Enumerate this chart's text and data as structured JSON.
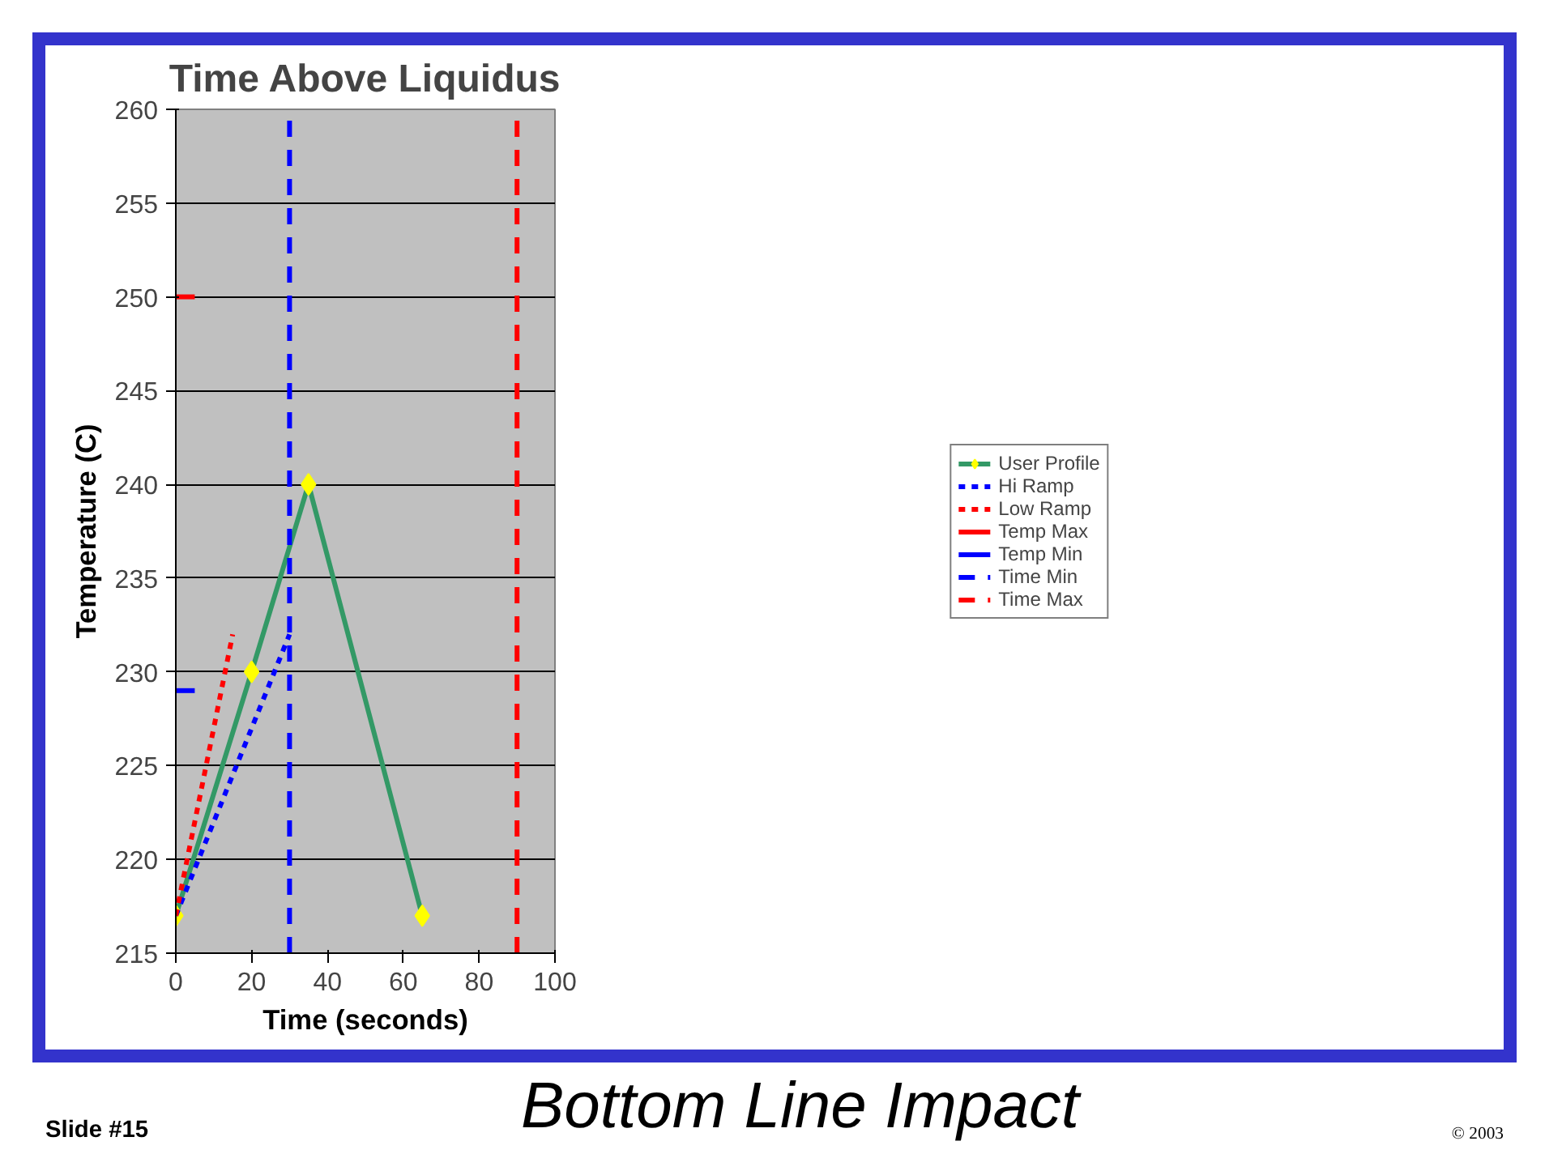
{
  "chart_data": {
    "type": "line",
    "title": "Time Above Liquidus",
    "xlabel": "Time (seconds)",
    "ylabel": "Temperature (C)",
    "xlim": [
      0,
      100
    ],
    "ylim": [
      215,
      260
    ],
    "xticks": [
      0,
      20,
      40,
      60,
      80,
      100
    ],
    "yticks": [
      215,
      220,
      225,
      230,
      235,
      240,
      245,
      250,
      255,
      260
    ],
    "grid": "y",
    "legend": "right",
    "series": [
      {
        "name": "User Profile",
        "color": "#339966",
        "x": [
          0,
          20,
          35,
          65
        ],
        "values": [
          217,
          230,
          240,
          217
        ],
        "marker": "diamond",
        "line_style": "solid"
      },
      {
        "name": "Hi Ramp",
        "color": "#0000ff",
        "x": [
          0,
          30
        ],
        "values": [
          217,
          232
        ],
        "line_style": "dotted"
      },
      {
        "name": "Low Ramp",
        "color": "#ff0000",
        "x": [
          0,
          15
        ],
        "values": [
          217,
          232
        ],
        "line_style": "dotted"
      },
      {
        "name": "Temp Max",
        "color": "#ff0000",
        "x": [
          0,
          5
        ],
        "values": [
          250,
          250
        ],
        "line_style": "solid"
      },
      {
        "name": "Temp Min",
        "color": "#0000ff",
        "x": [
          0,
          5
        ],
        "values": [
          229,
          229
        ],
        "line_style": "solid"
      },
      {
        "name": "Time Min",
        "color": "#0000ff",
        "x": [
          30,
          30
        ],
        "values": [
          215,
          260
        ],
        "line_style": "dashed"
      },
      {
        "name": "Time Max",
        "color": "#ff0000",
        "x": [
          90,
          90
        ],
        "values": [
          215,
          260
        ],
        "line_style": "dashed"
      }
    ],
    "annotations": [
      "Slide #15",
      "Bottom Line Impact",
      "© 2003"
    ]
  }
}
